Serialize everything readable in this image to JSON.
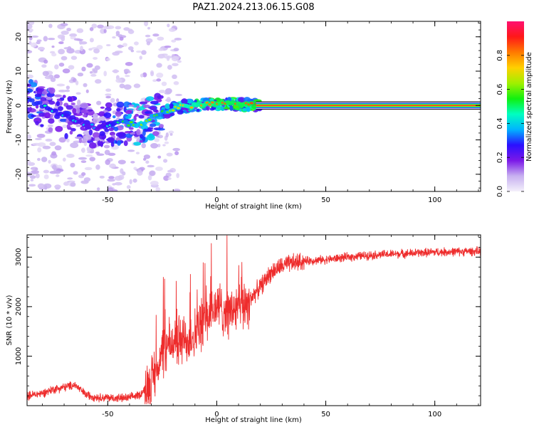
{
  "title": "PAZ1.2024.213.06.15.G08",
  "colorbar": {
    "label": "Normalized spectral amplitude",
    "ticks": [
      "0.0",
      "0.2",
      "0.4",
      "0.6",
      "0.8"
    ],
    "tick_values": [
      0,
      0.2,
      0.4,
      0.6,
      0.8
    ],
    "range": [
      0,
      1
    ],
    "colors": [
      "#f4f0fb",
      "#c7b0f0",
      "#7b18e8",
      "#2a10ff",
      "#00b4ff",
      "#00ffc0",
      "#10f010",
      "#a0f000",
      "#ffd000",
      "#ff7a00",
      "#ff1818",
      "#ff1070"
    ]
  },
  "chart_data": [
    {
      "type": "heatmap",
      "title": "",
      "xlabel": "Height of straight line (km)",
      "ylabel": "Frequency (Hz)",
      "xlim": [
        -87,
        121
      ],
      "ylim": [
        -25,
        24.5
      ],
      "xticks": [
        -50,
        0,
        50,
        100
      ],
      "yticks": [
        -20,
        -10,
        0,
        10,
        20
      ],
      "xtick_labels": [
        "-50",
        "0",
        "50",
        "100"
      ],
      "ytick_labels": [
        "-20",
        "-10",
        "0",
        "10",
        "20"
      ],
      "ridge": {
        "x": [
          -87,
          -75,
          -65,
          -55,
          -45,
          -35,
          -25,
          -15,
          -5,
          5,
          15,
          20,
          121
        ],
        "y": [
          2.0,
          -1.5,
          -4.0,
          -6.5,
          -5.0,
          -5.5,
          -2.0,
          -0.2,
          0.4,
          0.6,
          0.2,
          0.0,
          0.0
        ],
        "amplitude": [
          0.5,
          0.45,
          0.4,
          0.35,
          0.5,
          0.65,
          0.55,
          0.75,
          0.8,
          0.85,
          0.85,
          0.95,
          0.95
        ]
      }
    },
    {
      "type": "line",
      "title": "",
      "xlabel": "Height of straight line (km)",
      "ylabel": "SNR (10 * v/v)",
      "xlim": [
        -87,
        121
      ],
      "ylim": [
        0,
        3450
      ],
      "xticks": [
        -50,
        0,
        50,
        100
      ],
      "yticks": [
        1000,
        2000,
        3000
      ],
      "xtick_labels": [
        "-50",
        "0",
        "50",
        "100"
      ],
      "ytick_labels": [
        "1000",
        "2000",
        "3000"
      ],
      "color": "#ee2c2c",
      "series": [
        {
          "x": [
            -87,
            -80,
            -75,
            -70,
            -65,
            -60,
            -55,
            -50,
            -45,
            -40,
            -35,
            -30,
            -27,
            -25,
            -23,
            -20,
            -15,
            -10,
            -5,
            0,
            5,
            10,
            15,
            20,
            25,
            30,
            35,
            40,
            50,
            60,
            70,
            80,
            90,
            100,
            110,
            121
          ],
          "y": [
            200,
            250,
            330,
            370,
            420,
            220,
            170,
            160,
            150,
            160,
            230,
            500,
            800,
            1050,
            1150,
            1300,
            1300,
            1450,
            1750,
            2000,
            1900,
            1950,
            2150,
            2400,
            2700,
            2820,
            2880,
            2920,
            2950,
            3000,
            3040,
            3060,
            3080,
            3100,
            3110,
            3120
          ]
        }
      ]
    }
  ]
}
